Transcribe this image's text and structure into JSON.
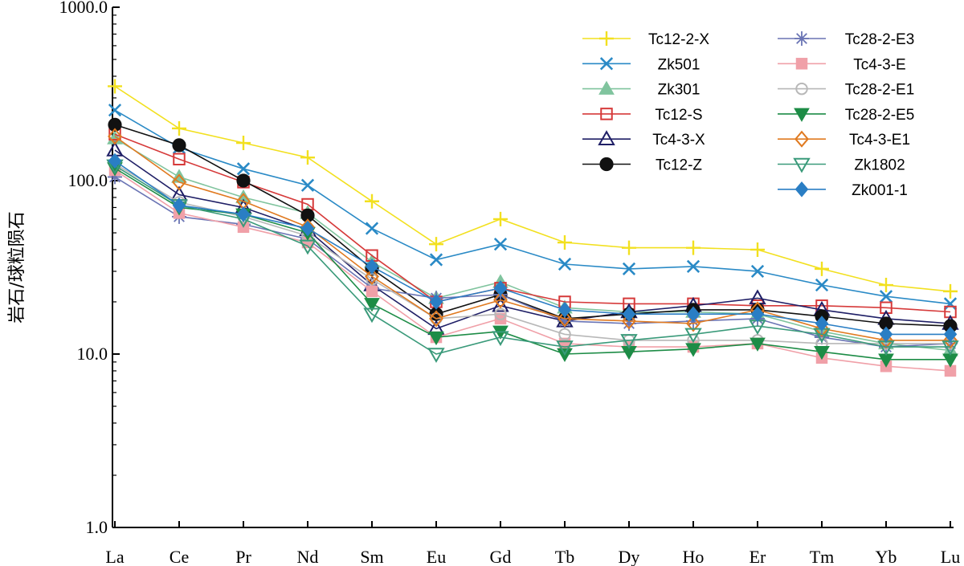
{
  "chart_data": {
    "type": "line",
    "y_scale": "log",
    "ylim": [
      1,
      1000
    ],
    "yticks": [
      {
        "value": 1,
        "label": "1.0"
      },
      {
        "value": 10,
        "label": "10.0"
      },
      {
        "value": 100,
        "label": "100.0"
      },
      {
        "value": 1000,
        "label": "1000.0"
      }
    ],
    "ylabel": "岩石/球粒陨石",
    "xlabel": "",
    "title": "",
    "grid": false,
    "legend_position": "top-right",
    "categories": [
      "La",
      "Ce",
      "Pr",
      "Nd",
      "Sm",
      "Eu",
      "Gd",
      "Tb",
      "Dy",
      "Ho",
      "Er",
      "Tm",
      "Yb",
      "Lu"
    ],
    "series": [
      {
        "name": "Tc12-2-X",
        "marker": "plus",
        "color": "#f2e01f",
        "values": [
          350,
          200,
          165,
          136,
          76,
          43,
          60,
          44,
          41,
          41,
          40,
          31,
          25,
          23
        ]
      },
      {
        "name": "Zk501",
        "marker": "x",
        "color": "#2a8ac6",
        "values": [
          255,
          155,
          117,
          94,
          53,
          35,
          43,
          33,
          31,
          32,
          30,
          25,
          21.5,
          19.5
        ]
      },
      {
        "name": "Zk301",
        "marker": "triangle",
        "color": "#80c49e",
        "values": [
          175,
          105,
          80,
          65,
          34,
          21,
          26,
          18.5,
          17.5,
          17.5,
          17,
          13.5,
          11.5,
          10.5
        ]
      },
      {
        "name": "Tc12-S",
        "marker": "square-open",
        "color": "#d63a3a",
        "values": [
          185,
          133,
          98,
          73,
          37,
          20,
          24,
          20,
          19.5,
          19.5,
          19,
          19,
          18.5,
          17.5
        ]
      },
      {
        "name": "Tc4-3-X",
        "marker": "triangle-open",
        "color": "#1f1f66",
        "values": [
          150,
          83,
          70,
          52,
          25,
          14,
          19,
          15.5,
          17.5,
          19,
          21,
          18,
          16,
          15
        ]
      },
      {
        "name": "Tc12-Z",
        "marker": "circle",
        "color": "#111111",
        "values": [
          210,
          160,
          100,
          63,
          31,
          17,
          22,
          16,
          17,
          18,
          18,
          16.5,
          15,
          14.5
        ]
      },
      {
        "name": "Tc28-2-E3",
        "marker": "asterisk",
        "color": "#6a74b4",
        "values": [
          105,
          62,
          56,
          46,
          24,
          21,
          22,
          15.5,
          15,
          15.5,
          16,
          12.5,
          11,
          11.5
        ]
      },
      {
        "name": "Tc4-3-E",
        "marker": "square",
        "color": "#f0a0a8",
        "values": [
          115,
          65,
          54,
          44,
          23,
          12.5,
          16,
          11.5,
          11,
          11,
          11.5,
          9.5,
          8.5,
          8
        ]
      },
      {
        "name": "Tc28-2-E1",
        "marker": "circle-open",
        "color": "#b8b8b8",
        "values": [
          125,
          75,
          62,
          48,
          27,
          16,
          17,
          13,
          12,
          12,
          12,
          11.5,
          11.5,
          11.5
        ]
      },
      {
        "name": "Tc28-2-E5",
        "marker": "triangle-down",
        "color": "#1d8c46",
        "values": [
          118,
          70,
          64,
          50,
          19.5,
          12.5,
          13.5,
          10,
          10.3,
          10.7,
          11.5,
          10.3,
          9.3,
          9.3
        ]
      },
      {
        "name": "Tc4-3-E1",
        "marker": "diamond-open",
        "color": "#e07a20",
        "values": [
          180,
          98,
          76,
          54,
          28,
          16,
          20.5,
          16,
          15.5,
          15,
          18,
          14,
          12,
          12
        ]
      },
      {
        "name": "Zk1802",
        "marker": "triangle-down-open",
        "color": "#3a9a7a",
        "values": [
          122,
          72,
          60,
          42,
          17,
          10,
          12.5,
          11,
          12,
          13,
          14.5,
          13,
          11,
          11
        ]
      },
      {
        "name": "Zk001-1",
        "marker": "diamond",
        "color": "#2a7ec4",
        "values": [
          130,
          72,
          64,
          53,
          32,
          20,
          24,
          18,
          17,
          17,
          17,
          15,
          13,
          13
        ]
      }
    ]
  }
}
